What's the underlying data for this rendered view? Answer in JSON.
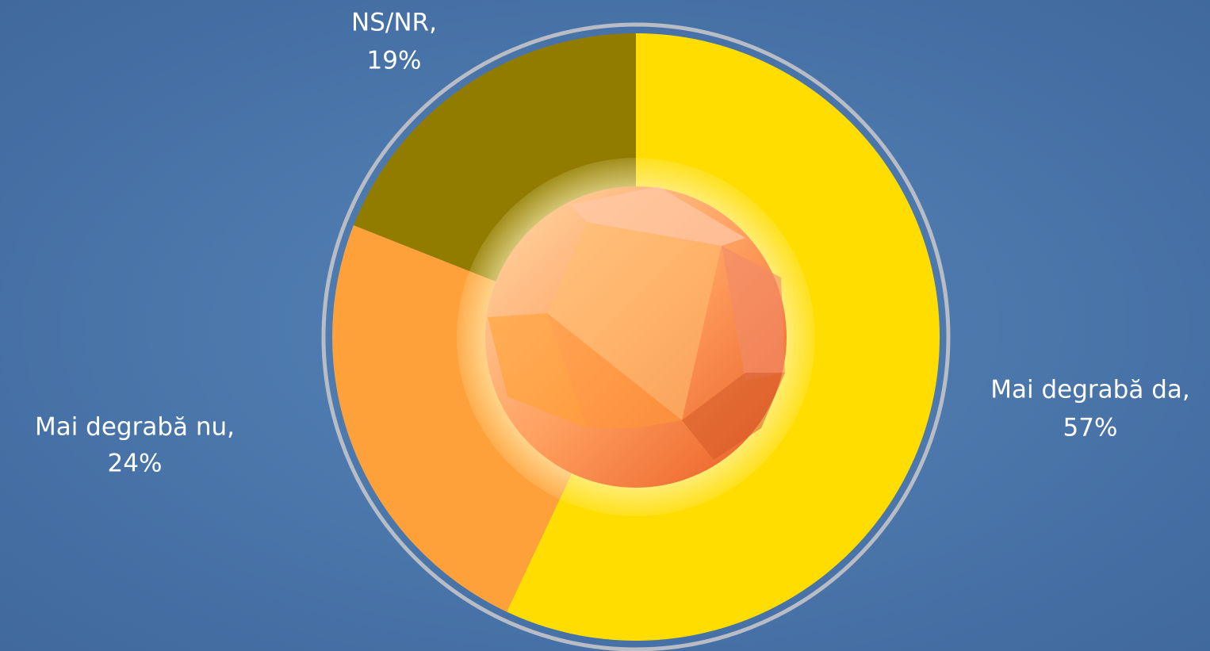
{
  "chart_data": {
    "type": "pie",
    "categories": [
      "Mai degrabă da,",
      "Mai degrabă nu,",
      "NS/NR,"
    ],
    "values": [
      57,
      24,
      19
    ],
    "value_labels": [
      "57%",
      "24%",
      "19%"
    ],
    "colors": [
      "#ffdd00",
      "#ffa13b",
      "#927c00"
    ]
  }
}
